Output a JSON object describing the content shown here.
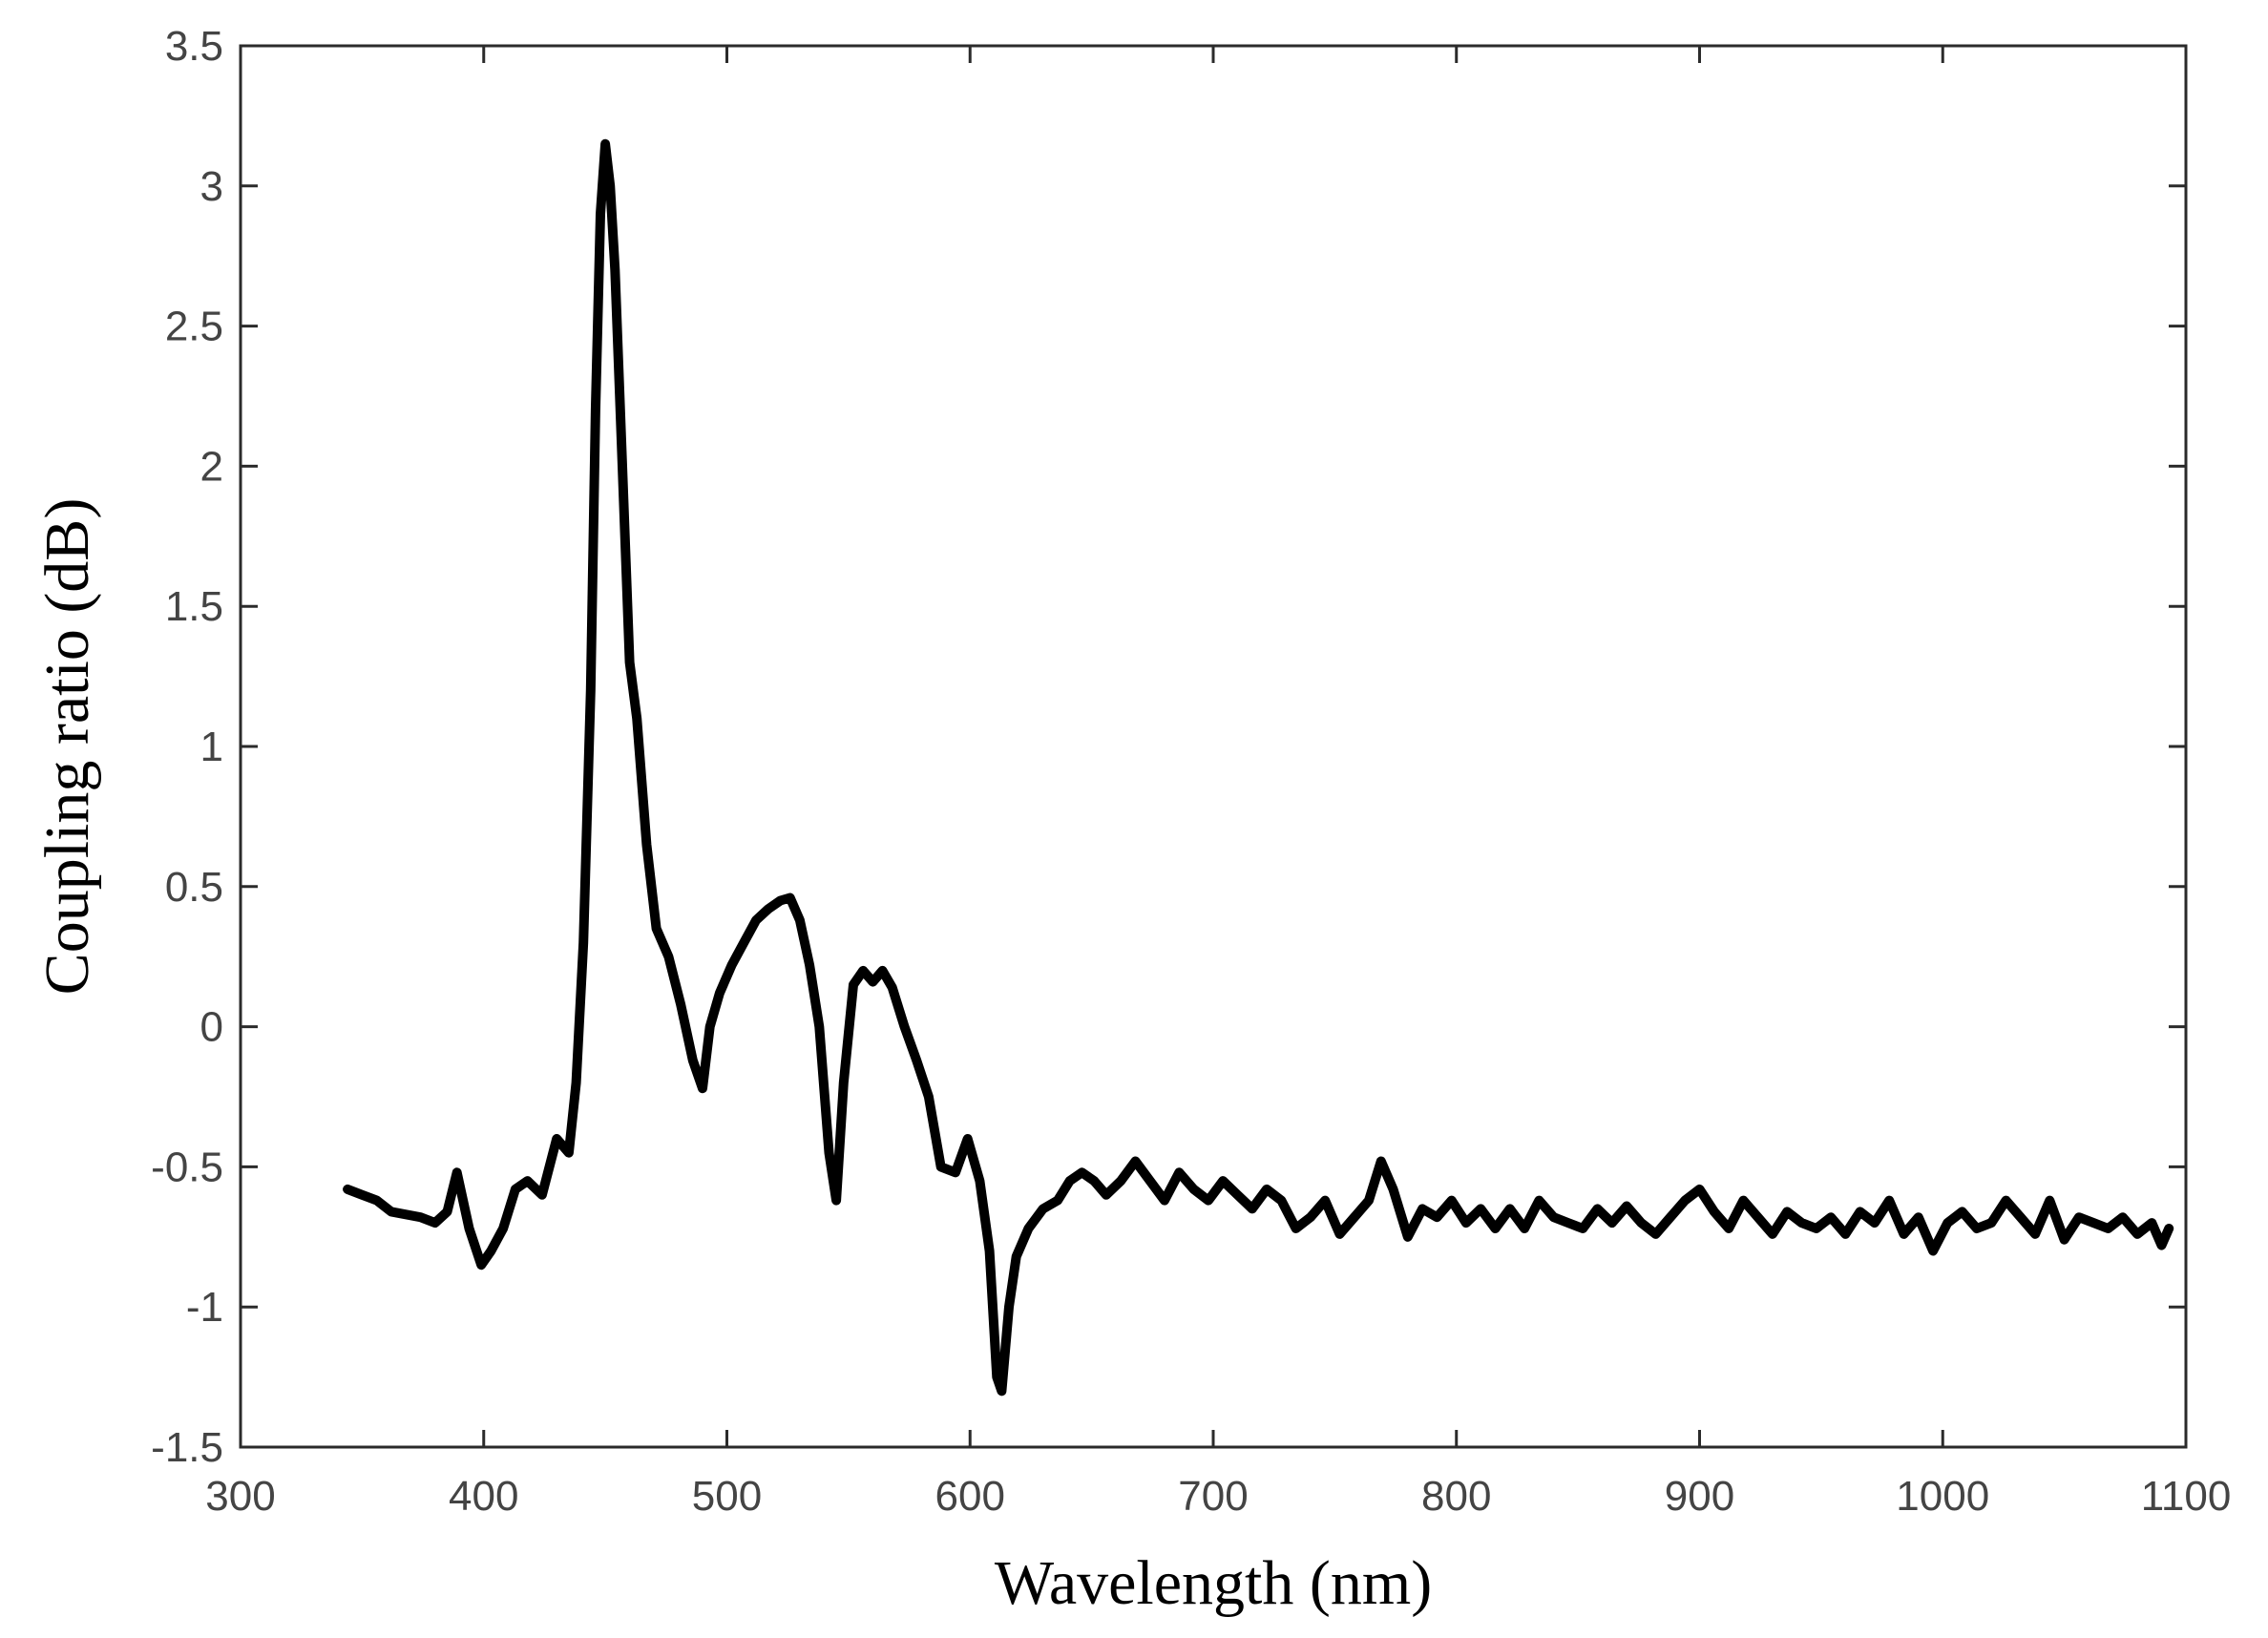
{
  "chart_data": {
    "type": "line",
    "title": "",
    "xlabel": "Wavelength (nm)",
    "ylabel": "Coupling ratio (dB)",
    "xlim": [
      300,
      1100
    ],
    "ylim": [
      -1.5,
      3.5
    ],
    "xticks": [
      300,
      400,
      500,
      600,
      700,
      800,
      900,
      1000,
      1100
    ],
    "yticks": [
      -1.5,
      -1,
      -0.5,
      0,
      0.5,
      1,
      1.5,
      2,
      2.5,
      3,
      3.5
    ],
    "xtick_labels": [
      "300",
      "400",
      "500",
      "600",
      "700",
      "800",
      "900",
      "1000",
      "1100"
    ],
    "ytick_labels": [
      "-1.5",
      "-1",
      "-0.5",
      "0",
      "0.5",
      "1",
      "1.5",
      "2",
      "2.5",
      "3",
      "3.5"
    ],
    "grid": false,
    "line_color": "#000000",
    "series": [
      {
        "x": [
          344,
          350,
          356,
          362,
          368,
          374,
          380,
          385,
          389,
          394,
          399,
          403,
          408,
          413,
          418,
          424,
          430,
          435,
          438,
          441,
          444,
          446,
          448,
          450,
          452,
          454,
          457,
          460,
          463,
          467,
          471,
          476,
          481,
          486,
          490,
          493,
          497,
          502,
          507,
          512,
          517,
          522,
          526,
          530,
          534,
          538,
          542,
          545,
          548,
          552,
          556,
          560,
          564,
          568,
          573,
          578,
          583,
          588,
          594,
          599,
          604,
          608,
          611,
          613,
          616,
          619,
          624,
          630,
          636,
          641,
          646,
          651,
          656,
          662,
          668,
          674,
          680,
          686,
          692,
          698,
          704,
          710,
          716,
          722,
          728,
          734,
          740,
          746,
          752,
          758,
          764,
          769,
          774,
          780,
          786,
          792,
          798,
          804,
          810,
          816,
          822,
          828,
          834,
          840,
          846,
          852,
          858,
          864,
          870,
          876,
          882,
          888,
          894,
          900,
          906,
          912,
          918,
          924,
          930,
          936,
          942,
          948,
          954,
          960,
          966,
          972,
          978,
          984,
          990,
          996,
          1002,
          1008,
          1014,
          1020,
          1026,
          1032,
          1038,
          1044,
          1050,
          1056,
          1062,
          1068,
          1074,
          1080,
          1086,
          1090,
          1093
        ],
        "y": [
          -0.58,
          -0.6,
          -0.62,
          -0.66,
          -0.67,
          -0.68,
          -0.7,
          -0.66,
          -0.52,
          -0.72,
          -0.85,
          -0.8,
          -0.72,
          -0.58,
          -0.55,
          -0.6,
          -0.4,
          -0.45,
          -0.2,
          0.3,
          1.2,
          2.2,
          2.9,
          3.15,
          3.0,
          2.7,
          2.0,
          1.3,
          1.1,
          0.65,
          0.35,
          0.25,
          0.08,
          -0.12,
          -0.22,
          0.0,
          0.12,
          0.22,
          0.3,
          0.38,
          0.42,
          0.45,
          0.46,
          0.38,
          0.22,
          0.0,
          -0.45,
          -0.62,
          -0.2,
          0.15,
          0.2,
          0.16,
          0.2,
          0.14,
          0.0,
          -0.12,
          -0.25,
          -0.5,
          -0.52,
          -0.4,
          -0.55,
          -0.8,
          -1.25,
          -1.3,
          -1.0,
          -0.82,
          -0.72,
          -0.65,
          -0.62,
          -0.55,
          -0.52,
          -0.55,
          -0.6,
          -0.55,
          -0.48,
          -0.55,
          -0.62,
          -0.52,
          -0.58,
          -0.62,
          -0.55,
          -0.6,
          -0.65,
          -0.58,
          -0.62,
          -0.72,
          -0.68,
          -0.62,
          -0.74,
          -0.68,
          -0.62,
          -0.48,
          -0.58,
          -0.75,
          -0.65,
          -0.68,
          -0.62,
          -0.7,
          -0.65,
          -0.72,
          -0.65,
          -0.72,
          -0.62,
          -0.68,
          -0.7,
          -0.72,
          -0.65,
          -0.7,
          -0.64,
          -0.7,
          -0.74,
          -0.68,
          -0.62,
          -0.58,
          -0.66,
          -0.72,
          -0.62,
          -0.68,
          -0.74,
          -0.66,
          -0.7,
          -0.72,
          -0.68,
          -0.74,
          -0.66,
          -0.7,
          -0.62,
          -0.74,
          -0.68,
          -0.8,
          -0.7,
          -0.66,
          -0.72,
          -0.7,
          -0.62,
          -0.68,
          -0.74,
          -0.62,
          -0.76,
          -0.68,
          -0.7,
          -0.72,
          -0.68,
          -0.74,
          -0.7,
          -0.78,
          -0.72
        ]
      }
    ]
  }
}
